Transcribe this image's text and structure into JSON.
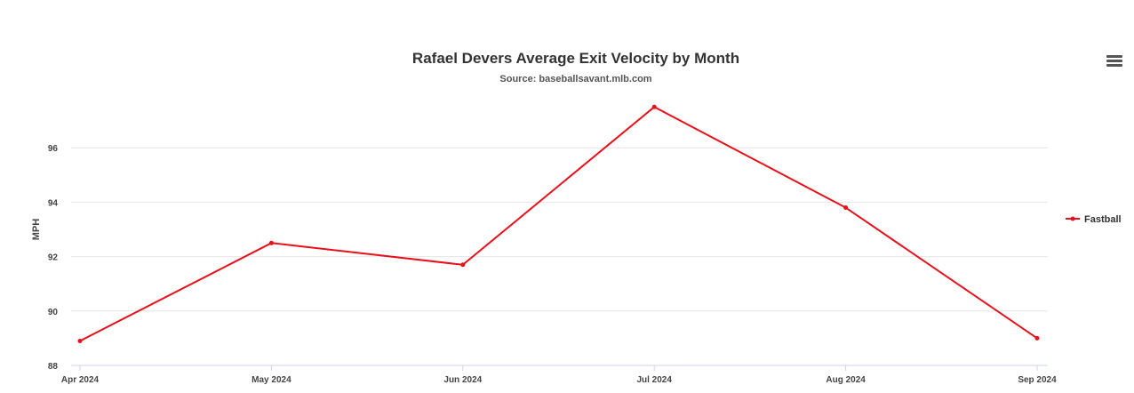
{
  "chart_data": {
    "type": "line",
    "title": "Rafael Devers Average Exit Velocity by Month",
    "subtitle": "Source: baseballsavant.mlb.com",
    "xlabel": "",
    "ylabel": "MPH",
    "categories": [
      "Apr 2024",
      "May 2024",
      "Jun 2024",
      "Jul 2024",
      "Aug 2024",
      "Sep 2024"
    ],
    "series": [
      {
        "name": "Fastball",
        "color": "#e8101a",
        "values": [
          88.9,
          92.5,
          91.7,
          97.5,
          93.8,
          89.0
        ]
      }
    ],
    "ylim": [
      88,
      98
    ],
    "yticks": [
      88,
      90,
      92,
      94,
      96
    ],
    "grid": true,
    "legend": "right"
  },
  "menu": {
    "icon": "hamburger-menu-icon"
  }
}
